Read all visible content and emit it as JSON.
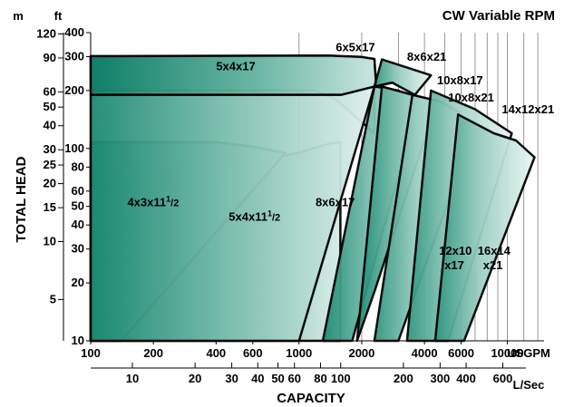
{
  "chart_data": {
    "type": "area",
    "title": "CW Variable RPM",
    "y_label": "TOTAL HEAD",
    "x_label": "CAPACITY",
    "y_left_unit": "m",
    "y_right_unit": "ft",
    "x_top_unit": "USGPM",
    "x_bottom_unit": "L/Sec",
    "x_scale": "log",
    "y_scale": "log",
    "x_range_usgpm": [
      100,
      15000
    ],
    "y_range_ft": [
      10,
      400
    ],
    "m_ticks": [
      "120",
      "90",
      "60",
      "50",
      "40",
      "30",
      "25",
      "20",
      "15",
      "10",
      "5"
    ],
    "ft_ticks": [
      "400",
      "300",
      "200",
      "100",
      "80",
      "60",
      "50",
      "40",
      "30",
      "20",
      "10"
    ],
    "usgpm_ticks": [
      "100",
      "200",
      "400",
      "600",
      "1000",
      "2000",
      "4000",
      "6000",
      "10000"
    ],
    "lsec_ticks": [
      "10",
      "20",
      "30",
      "40",
      "50",
      "60",
      "80",
      "100",
      "200",
      "300",
      "400",
      "600"
    ],
    "series": [
      {
        "name": "4x3x11",
        "fraction": "1/2",
        "points": [
          [
            100,
            80
          ],
          [
            460,
            80
          ],
          [
            990,
            95
          ],
          [
            1400,
            106
          ],
          [
            1580,
            108
          ],
          [
            1580,
            10
          ],
          [
            980,
            10
          ],
          [
            100,
            10
          ]
        ]
      },
      {
        "name": "5x4x17",
        "points": [
          [
            100,
            300
          ],
          [
            1000,
            302
          ],
          [
            1700,
            298
          ],
          [
            2000,
            294
          ],
          [
            2300,
            290
          ],
          [
            2300,
            120
          ],
          [
            1500,
            180
          ],
          [
            1200,
            200
          ],
          [
            100,
            200
          ]
        ]
      },
      {
        "name": "6x5x17",
        "points": [
          [
            100,
            302
          ],
          [
            1400,
            304
          ],
          [
            2000,
            299
          ],
          [
            2300,
            292
          ],
          [
            2350,
            210
          ],
          [
            2800,
            220
          ],
          [
            1600,
            190
          ],
          [
            100,
            190
          ]
        ]
      },
      {
        "name": "5x4x11",
        "fraction": "1/2",
        "points": [
          [
            100,
            108
          ],
          [
            200,
            108
          ],
          [
            400,
            108
          ],
          [
            600,
            102
          ],
          [
            800,
            96
          ],
          [
            860,
            95
          ],
          [
            140,
            10
          ],
          [
            100,
            10
          ]
        ]
      },
      {
        "name": "8x6x17",
        "points": [
          [
            100,
            190
          ],
          [
            1600,
            190
          ],
          [
            2300,
            210
          ],
          [
            1000,
            10
          ],
          [
            100,
            10
          ]
        ]
      },
      {
        "name": "8x6x21",
        "points": [
          [
            2300,
            210
          ],
          [
            2500,
            290
          ],
          [
            3500,
            258
          ],
          [
            4300,
            240
          ],
          [
            3600,
            190
          ],
          [
            2800,
            220
          ]
        ]
      },
      {
        "name": "10x8x17",
        "points": [
          [
            2300,
            210
          ],
          [
            3000,
            200
          ],
          [
            3800,
            180
          ],
          [
            1800,
            10
          ],
          [
            1300,
            10
          ]
        ]
      },
      {
        "name": "10x8x21",
        "points": [
          [
            2500,
            210
          ],
          [
            3500,
            190
          ],
          [
            4600,
            175
          ],
          [
            2300,
            18
          ],
          [
            1900,
            10
          ]
        ]
      },
      {
        "name": "12x10",
        "line2": "x17",
        "points": [
          [
            3500,
            190
          ],
          [
            4800,
            175
          ],
          [
            5800,
            155
          ],
          [
            6600,
            110
          ],
          [
            3000,
            10
          ],
          [
            2300,
            10
          ]
        ]
      },
      {
        "name": "14x12x21",
        "points": [
          [
            4300,
            200
          ],
          [
            7000,
            160
          ],
          [
            10500,
            120
          ],
          [
            5200,
            10
          ],
          [
            3300,
            10
          ]
        ]
      },
      {
        "name": "16x14",
        "line2": "x21",
        "points": [
          [
            5800,
            150
          ],
          [
            8600,
            120
          ],
          [
            11000,
            110
          ],
          [
            13500,
            90
          ],
          [
            6200,
            10
          ],
          [
            4500,
            10
          ]
        ]
      }
    ]
  }
}
